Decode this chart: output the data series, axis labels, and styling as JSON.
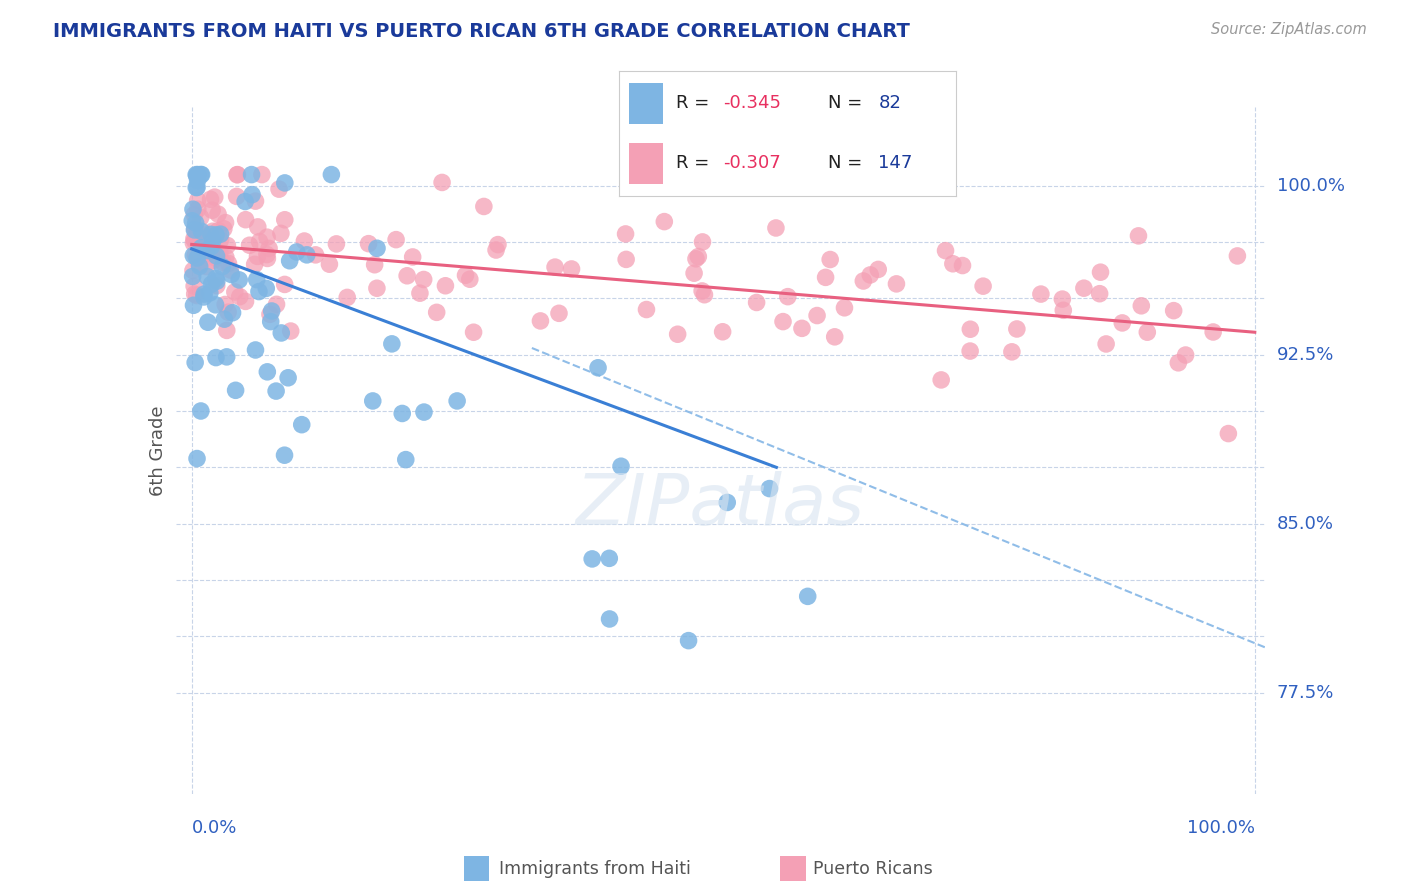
{
  "title": "IMMIGRANTS FROM HAITI VS PUERTO RICAN 6TH GRADE CORRELATION CHART",
  "source_text": "Source: ZipAtlas.com",
  "ylabel": "6th Grade",
  "haiti_R": -0.345,
  "haiti_N": 82,
  "pr_R": -0.307,
  "pr_N": 147,
  "haiti_color": "#7eb5e3",
  "pr_color": "#f4a0b5",
  "haiti_line_color": "#3a7fd5",
  "pr_line_color": "#e86080",
  "dashed_line_color": "#90bde8",
  "background_color": "#ffffff",
  "grid_color": "#c8d4e8",
  "title_color": "#1a3a9a",
  "source_color": "#999999",
  "axis_label_color": "#3060c0",
  "legend_dark_color": "#1a3a9a",
  "legend_R_color": "#e83060",
  "ylabel_color": "#555555",
  "ylim": [
    0.73,
    1.035
  ],
  "xlim": [
    -0.015,
    1.01
  ],
  "haiti_line_x0": 0.0,
  "haiti_line_x1": 0.55,
  "haiti_line_y0": 0.972,
  "haiti_line_y1": 0.875,
  "pr_line_x0": 0.0,
  "pr_line_x1": 1.0,
  "pr_line_y0": 0.974,
  "pr_line_y1": 0.935,
  "dash_line_x0": 0.32,
  "dash_line_x1": 1.01,
  "dash_line_y0": 0.928,
  "dash_line_y1": 0.795,
  "ytick_positions": [
    0.775,
    0.8,
    0.825,
    0.85,
    0.875,
    0.9,
    0.925,
    0.95,
    0.975,
    1.0
  ],
  "ytick_labeled": {
    "0.775": "77.5%",
    "0.850": "85.0%",
    "0.925": "92.5%",
    "1.000": "100.0%"
  }
}
